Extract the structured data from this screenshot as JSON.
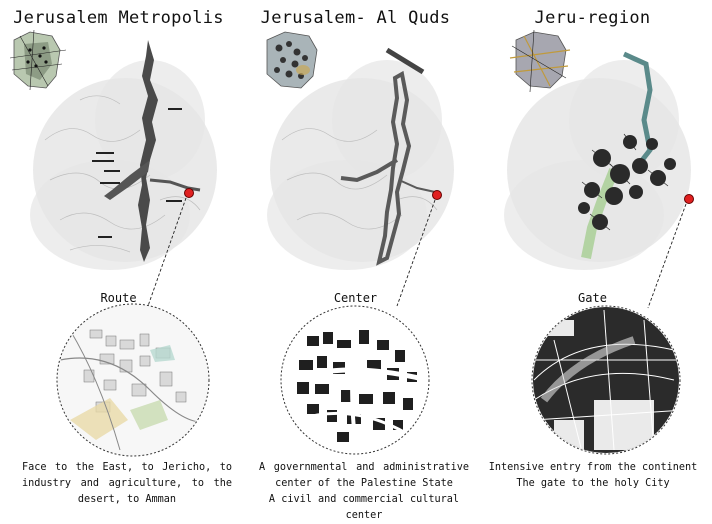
{
  "panels": [
    {
      "title": "Jerusalem Metropolis",
      "label": "Route",
      "caption": [
        "Face to the East, to Jericho, to",
        "industry and agriculture, to the",
        "desert, to Amman"
      ]
    },
    {
      "title": "Jerusalem- Al Quds",
      "label": "Center",
      "caption": [
        "A governmental and administrative",
        "center of the Palestine State",
        "A civil and commercial cultural center"
      ]
    },
    {
      "title": "Jeru-region",
      "label": "Gate",
      "caption": [
        "Intensive entry from the continent",
        "The gate to the holy City"
      ]
    }
  ],
  "colors": {
    "marker": "#e02020",
    "terrain": "#cfcfcf",
    "urban": "#3a3a3a",
    "green": "#9ccb86"
  },
  "icons": [
    "map-thumbnail",
    "location-marker",
    "zoom-circle"
  ]
}
